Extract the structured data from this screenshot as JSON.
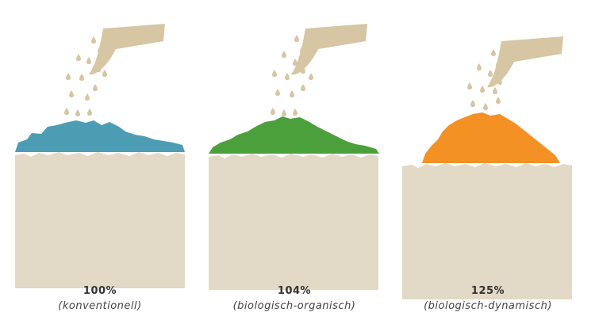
{
  "colors": {
    "soil": "#e2d9c6",
    "can": "#d6c6a4",
    "background": "#ffffff"
  },
  "panels": [
    {
      "percent": "100%",
      "method": "(konventionell)",
      "compost_color": "#4c9db4"
    },
    {
      "percent": "104%",
      "method": "(biologisch-organisch)",
      "compost_color": "#4ca03c"
    },
    {
      "percent": "125%",
      "method": "(biologisch-dynamisch)",
      "compost_color": "#f39124"
    }
  ],
  "icons": [
    "watering-can-icon",
    "water-drops"
  ]
}
